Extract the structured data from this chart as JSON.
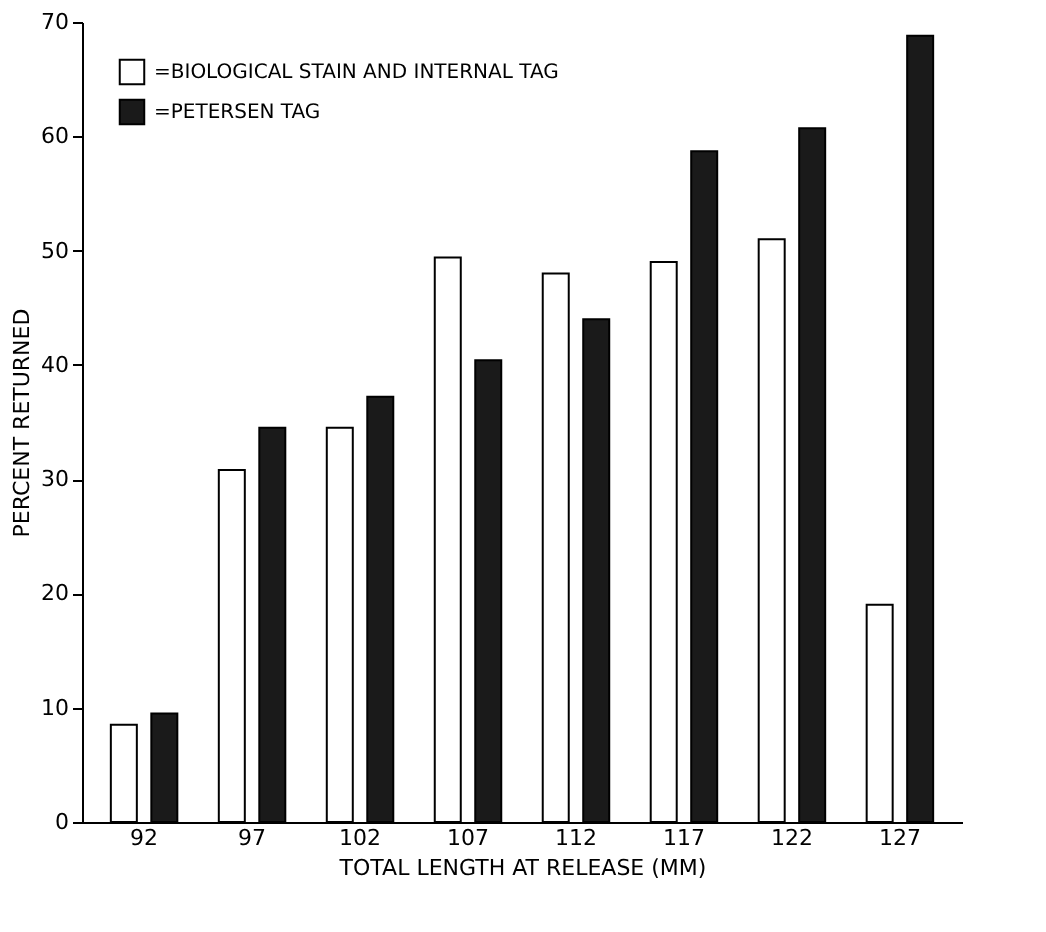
{
  "chart_data": {
    "type": "bar",
    "xlabel": "TOTAL LENGTH AT RELEASE (MM)",
    "ylabel": "PERCENT RETURNED",
    "categories": [
      "92",
      "97",
      "102",
      "107",
      "112",
      "117",
      "122",
      "127"
    ],
    "series": [
      {
        "name": "=BIOLOGICAL STAIN AND INTERNAL TAG",
        "color": "#ffffff",
        "values": [
          8.5,
          30.8,
          34.5,
          49.4,
          48,
          49,
          51,
          19
        ]
      },
      {
        "name": "=PETERSEN TAG",
        "color": "#1a1a1a",
        "values": [
          9.5,
          34.5,
          37.2,
          40.4,
          44,
          58.7,
          60.7,
          68.8
        ]
      }
    ],
    "ylim": [
      0,
      70
    ],
    "yticks": [
      0,
      10,
      20,
      30,
      40,
      50,
      60,
      70
    ],
    "grid": false,
    "legend": "top left"
  }
}
